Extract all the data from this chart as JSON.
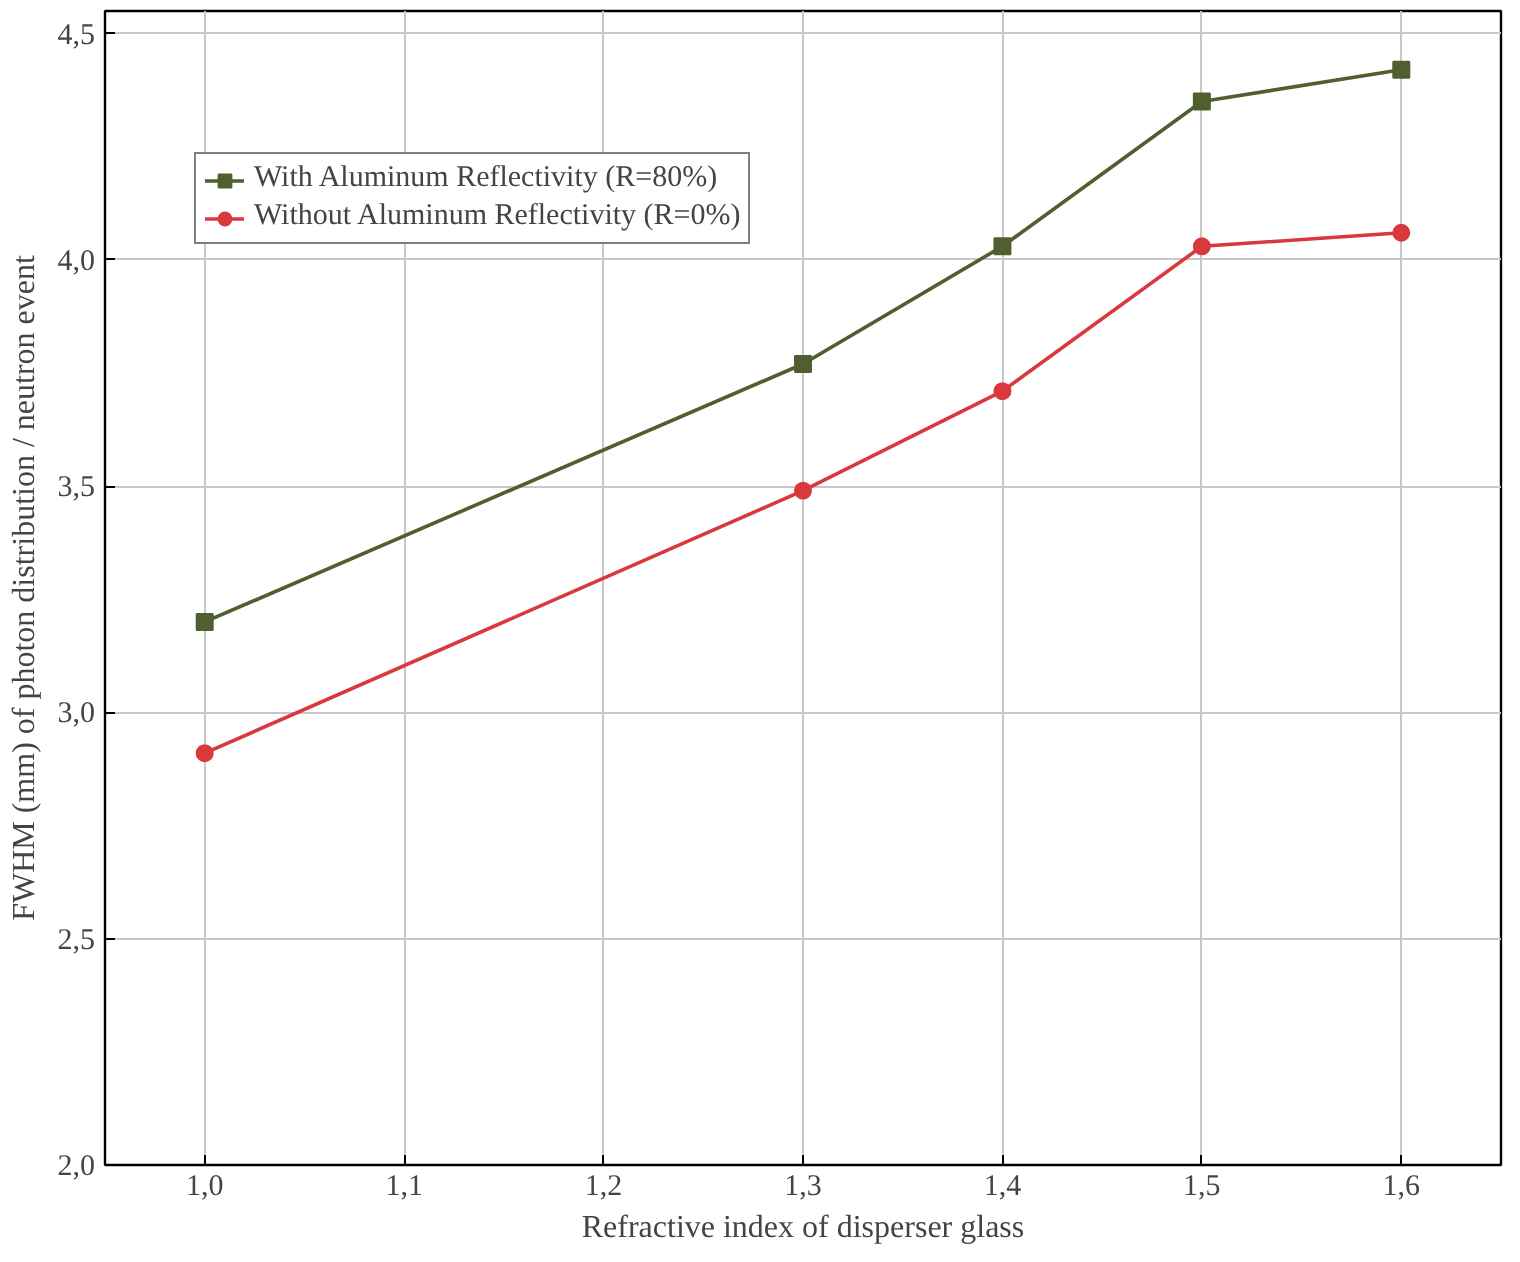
{
  "chart_data": {
    "type": "line",
    "xlabel": "Refractive index of disperser glass",
    "ylabel": "FWHM (mm) of photon distribution / neutron event",
    "x": [
      1.0,
      1.3,
      1.4,
      1.5,
      1.6
    ],
    "series": [
      {
        "name": "With Aluminum Reflectivity (R=80%)",
        "color": "#4f5f2f",
        "marker": "square",
        "values": [
          3.2,
          3.77,
          4.03,
          4.35,
          4.42
        ]
      },
      {
        "name": "Without Aluminum Reflectivity (R=0%)",
        "color": "#d9393c",
        "marker": "circle",
        "values": [
          2.91,
          3.49,
          3.71,
          4.03,
          4.06
        ]
      }
    ],
    "xlim": [
      0.95,
      1.65
    ],
    "ylim": [
      2.0,
      4.55
    ],
    "xticks": [
      {
        "value": 1.0,
        "label": "1,0"
      },
      {
        "value": 1.1,
        "label": "1,1"
      },
      {
        "value": 1.2,
        "label": "1,2"
      },
      {
        "value": 1.3,
        "label": "1,3"
      },
      {
        "value": 1.4,
        "label": "1,4"
      },
      {
        "value": 1.5,
        "label": "1,5"
      },
      {
        "value": 1.6,
        "label": "1,6"
      }
    ],
    "yticks": [
      {
        "value": 2.0,
        "label": "2,0"
      },
      {
        "value": 2.5,
        "label": "2,5"
      },
      {
        "value": 3.0,
        "label": "3,0"
      },
      {
        "value": 3.5,
        "label": "3,5"
      },
      {
        "value": 4.0,
        "label": "4,0"
      },
      {
        "value": 4.5,
        "label": "4,5"
      }
    ],
    "grid": true,
    "legend": "top left",
    "line_style": "solid"
  }
}
